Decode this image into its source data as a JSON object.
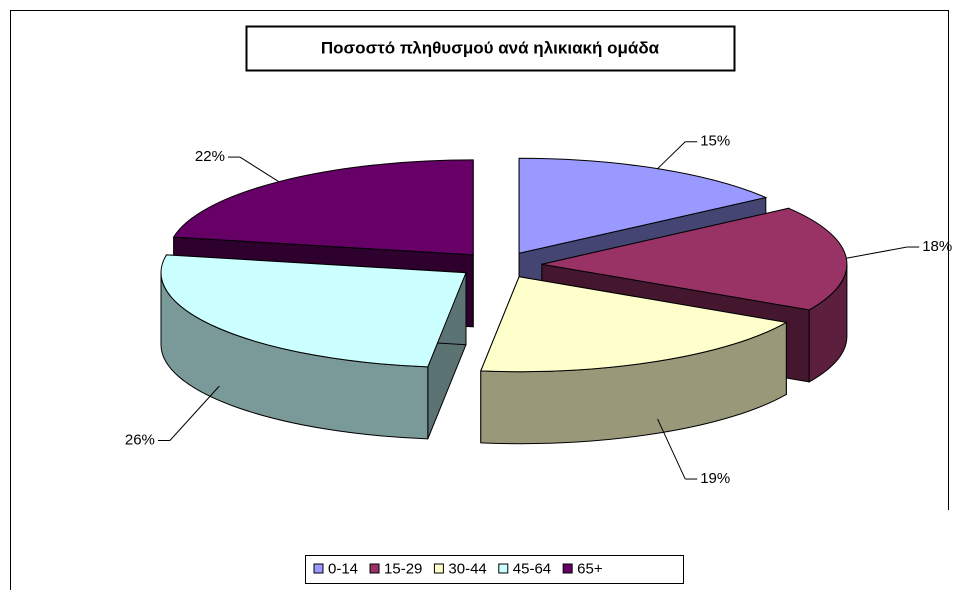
{
  "chart_data": {
    "type": "pie",
    "title": "Ποσοστό πληθυσμού ανά ηλικιακή ομάδα",
    "categories": [
      "0-14",
      "15-29",
      "30-44",
      "45-64",
      "65+"
    ],
    "values": [
      15,
      18,
      19,
      26,
      22
    ],
    "value_labels": [
      "15%",
      "18%",
      "19%",
      "26%",
      "22%"
    ],
    "colors": [
      "#9999ff",
      "#993366",
      "#ffffcc",
      "#ccffff",
      "#660066"
    ],
    "legend": "bottom"
  }
}
